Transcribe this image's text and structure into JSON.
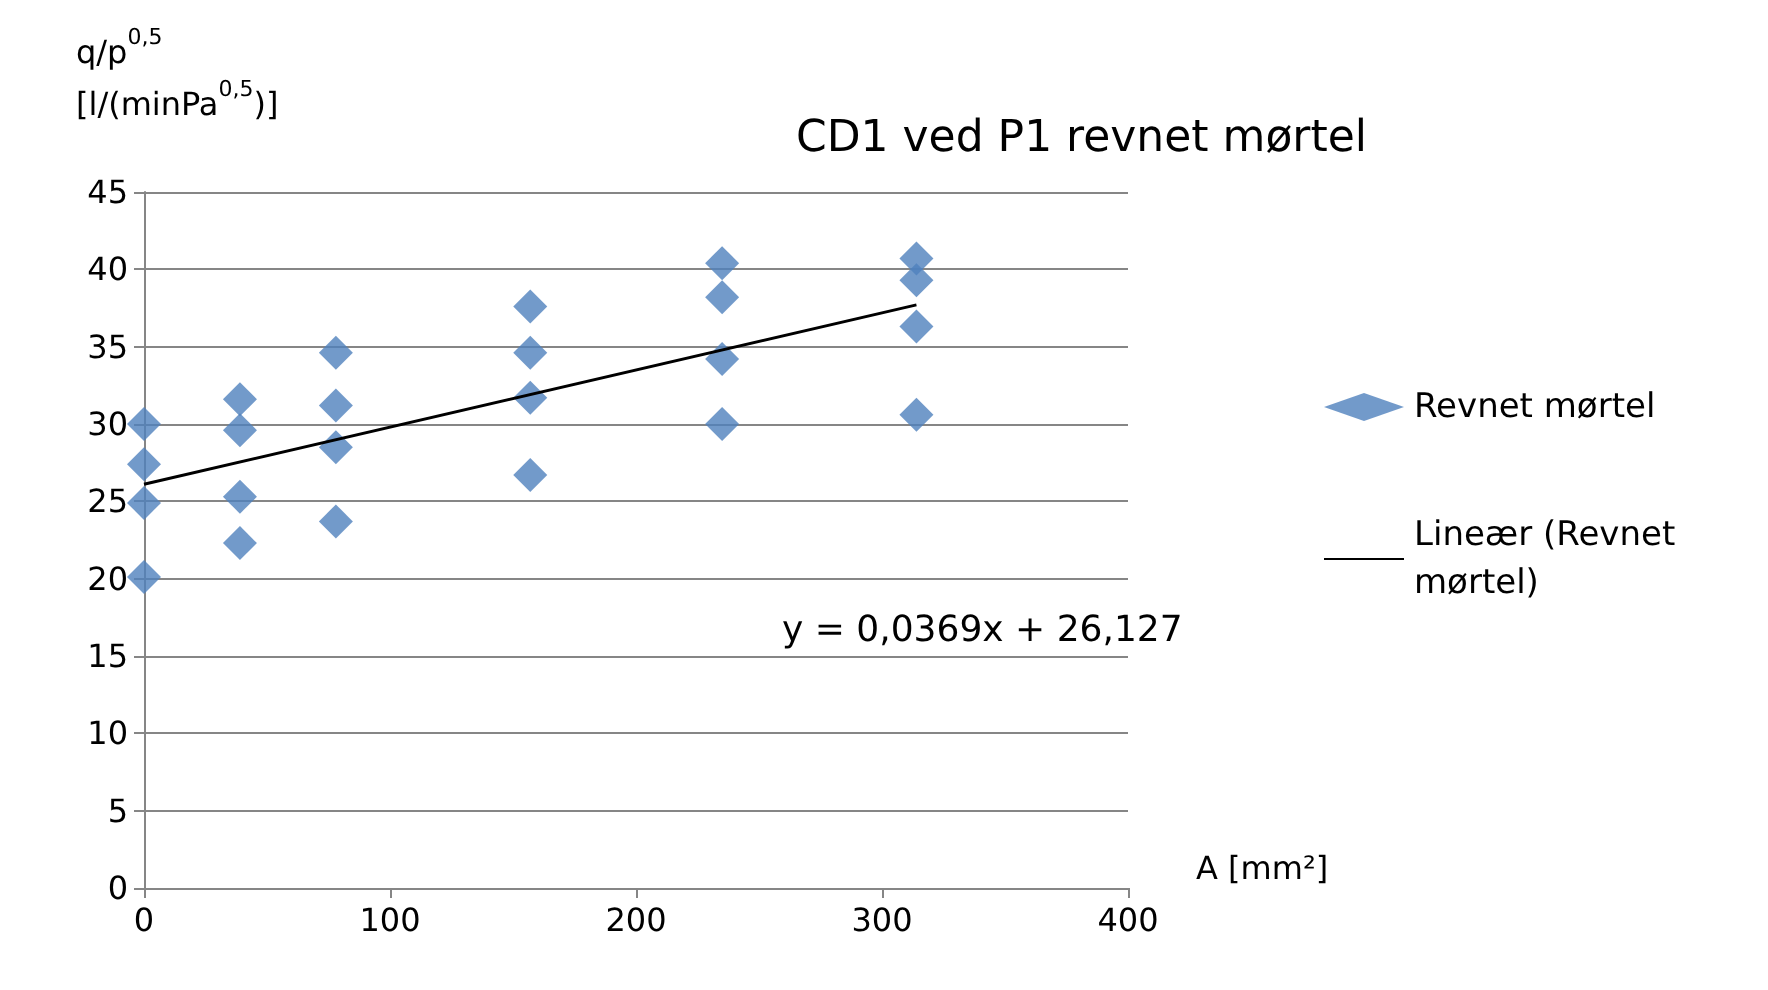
{
  "chart_data": {
    "type": "scatter",
    "title": "CD1 ved P1 revnet mørtel",
    "xlabel": "A [mm²]",
    "ylabel": "q/p$^{0,5}$\n[l/(minPa$^{0,5}$)]",
    "annotations": [
      "y = 0,0369x + 26,127"
    ],
    "series": [
      {
        "name": "Revnet mørtel",
        "color": "#4f81bd",
        "marker": "diamond",
        "x": [
          0,
          0,
          0,
          0,
          39,
          39,
          39,
          39,
          78,
          78,
          78,
          78,
          157,
          157,
          157,
          157,
          235,
          235,
          235,
          235,
          314,
          314,
          314,
          314
        ],
        "values": [
          30.0,
          27.4,
          24.9,
          20.1,
          31.6,
          29.6,
          25.3,
          22.3,
          34.6,
          31.2,
          28.5,
          23.7,
          37.6,
          34.6,
          31.7,
          26.7,
          40.4,
          38.2,
          34.2,
          30.0,
          40.7,
          39.3,
          36.3,
          30.6
        ]
      },
      {
        "name": "Lineær (Revnet mørtel)",
        "type": "line",
        "color": "#000000",
        "marker": "none",
        "line_style": "solid",
        "x": [
          0,
          314
        ],
        "values": [
          26.1,
          37.7
        ]
      }
    ],
    "xlim": [
      0,
      400
    ],
    "xticks": [
      0,
      100,
      200,
      300,
      400
    ],
    "ylim": [
      0,
      45
    ],
    "yticks": [
      0,
      5,
      10,
      15,
      20,
      25,
      30,
      35,
      40,
      45
    ],
    "grid": "y",
    "legend": "right"
  }
}
